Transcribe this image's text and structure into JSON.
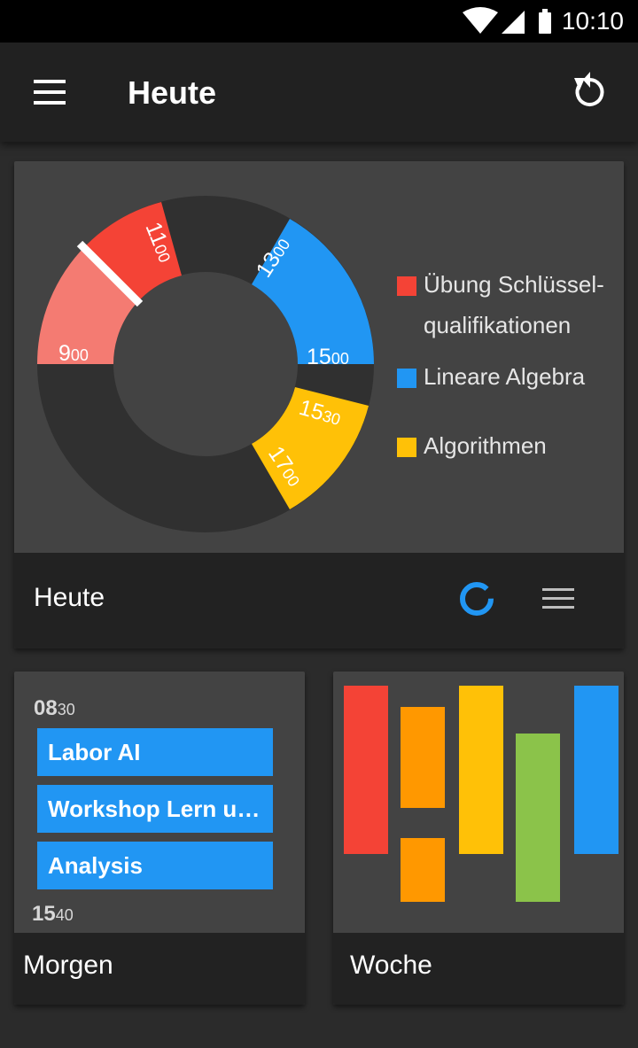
{
  "status_bar": {
    "time": "10:10",
    "icons": [
      "wifi-icon",
      "cell-signal-icon",
      "battery-icon"
    ]
  },
  "app_bar": {
    "title": "Heute",
    "menu_icon": "hamburger-menu-icon",
    "action_icon": "refresh-icon"
  },
  "today_card": {
    "footer_label": "Heute",
    "donut_view_icon": "donut-chart-icon",
    "list_view_icon": "list-icon",
    "legend": [
      {
        "label_line1": "Übung Schlüssel-",
        "label_line2": "qualifikationen",
        "color": "#f44336"
      },
      {
        "label_line1": "Lineare Algebra",
        "label_line2": "",
        "color": "#2196f3"
      },
      {
        "label_line1": "Algorithmen",
        "label_line2": "",
        "color": "#ffc107"
      }
    ],
    "time_labels": [
      {
        "h": "9",
        "m": "00"
      },
      {
        "h": "11",
        "m": "00"
      },
      {
        "h": "13",
        "m": "00"
      },
      {
        "h": "15",
        "m": "00"
      },
      {
        "h": "15",
        "m": "30"
      },
      {
        "h": "17",
        "m": "00"
      }
    ]
  },
  "morgen_card": {
    "start_time": {
      "h": "08",
      "m": "30"
    },
    "end_time": {
      "h": "15",
      "m": "40"
    },
    "events": [
      {
        "label": "Labor AI"
      },
      {
        "label": "Workshop Lern und Arbeitstechniken"
      },
      {
        "label": " Analysis"
      }
    ],
    "footer_label": "Morgen"
  },
  "woche_card": {
    "footer_label": "Woche",
    "colors": {
      "red": "#f44336",
      "orange": "#ff9800",
      "yellow": "#ffc107",
      "green": "#8bc34a",
      "blue": "#2196f3"
    }
  },
  "colors": {
    "accent": "#2196f3",
    "card_bg": "#434343",
    "footer_bg": "#222222",
    "appbar_bg": "#212121",
    "salmon": "#f47b72"
  }
}
